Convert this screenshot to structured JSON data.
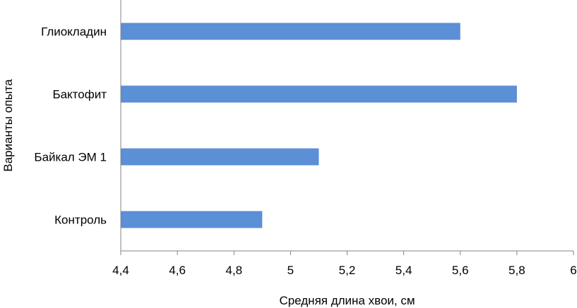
{
  "chart_data": {
    "type": "bar",
    "orientation": "horizontal",
    "categories": [
      "Контроль",
      "Байкал ЭМ 1",
      "Бактофит",
      "Глиокладин"
    ],
    "values": [
      4.9,
      5.1,
      5.8,
      5.6
    ],
    "xlabel": "Средняя длина хвои, см",
    "ylabel": "Варианты опыта",
    "xlim": [
      4.4,
      6
    ],
    "x_ticks": [
      4.4,
      4.6,
      4.8,
      5,
      5.2,
      5.4,
      5.6,
      5.8,
      6
    ],
    "x_tick_labels": [
      "4,4",
      "4,6",
      "4,8",
      "5",
      "5,2",
      "5,4",
      "5,6",
      "5,8",
      "6"
    ],
    "grid": false,
    "legend": "none",
    "bar_color": "#5B8FD6",
    "axis_color": "#868686"
  }
}
